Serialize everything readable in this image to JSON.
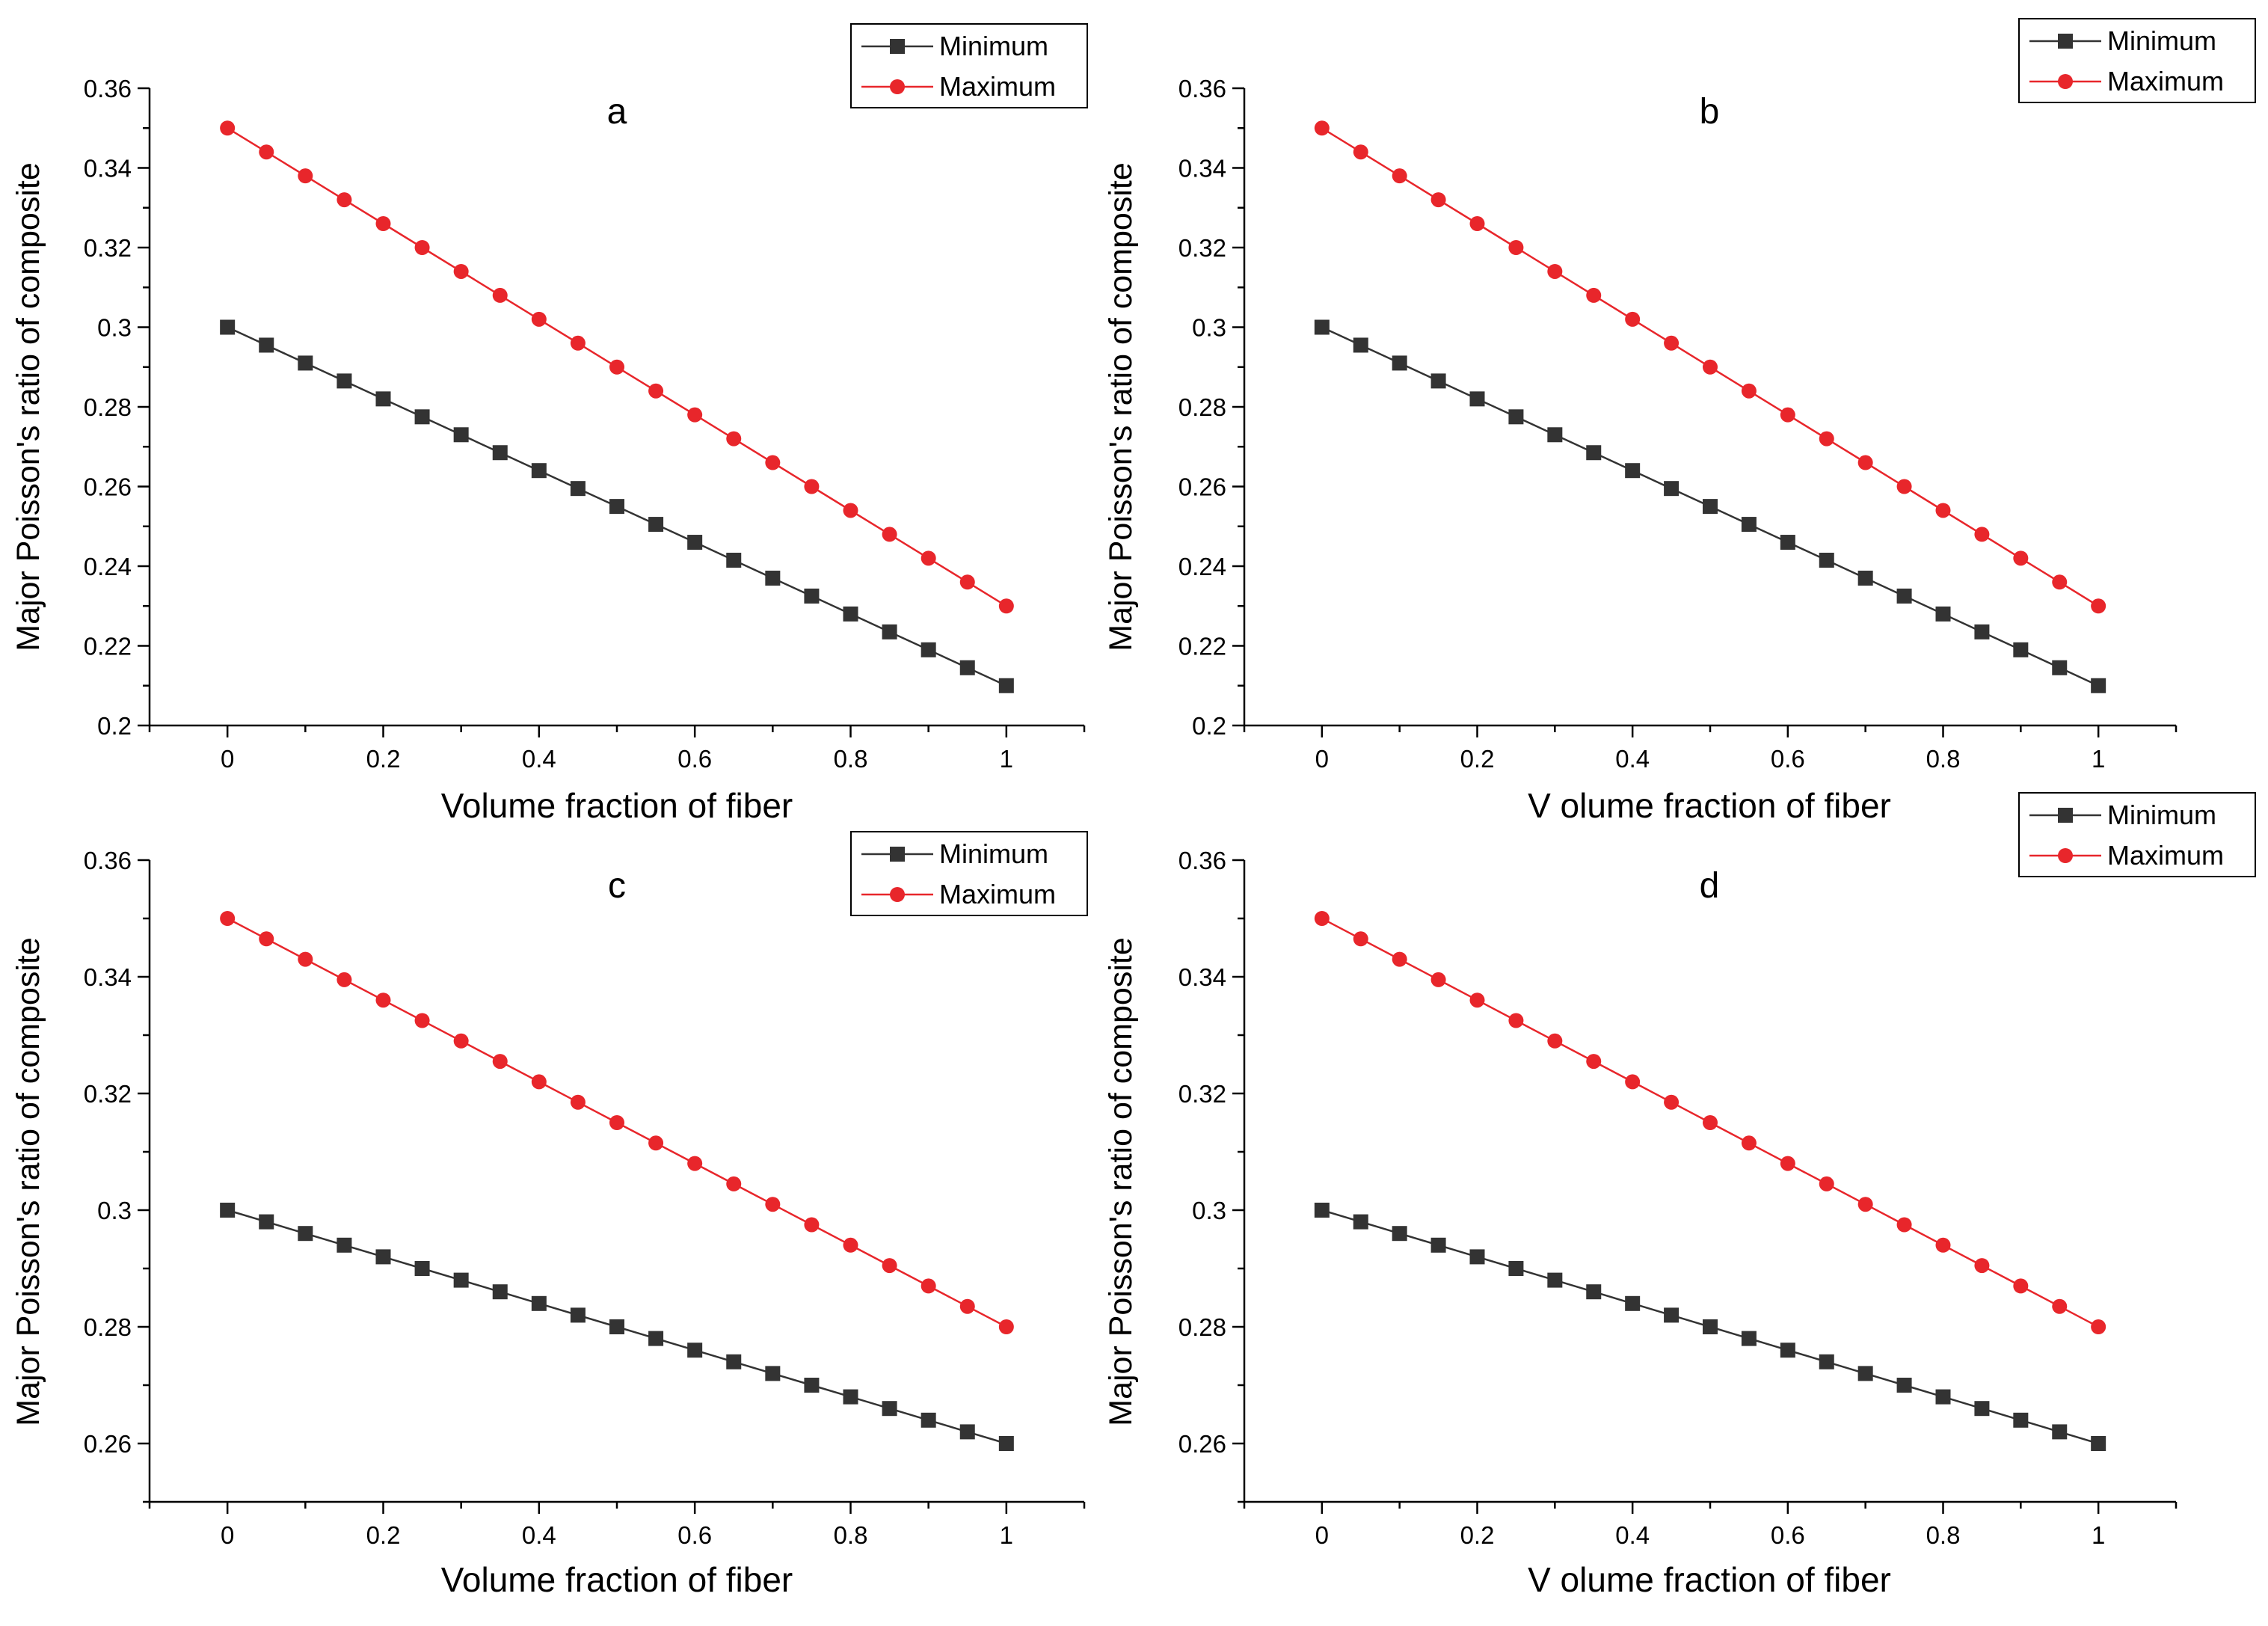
{
  "figure": {
    "colors": {
      "minimum": "#333333",
      "maximum": "#e8262b",
      "axis": "#000000"
    }
  },
  "chart_data": [
    {
      "type": "line",
      "title": "a",
      "xlabel": "Volume fraction of fiber",
      "ylabel": "Major Poisson's ratio of composite",
      "xlim": [
        -0.1,
        1.1
      ],
      "ylim": [
        0.2,
        0.36
      ],
      "xticks": [
        0,
        0.2,
        0.4,
        0.6,
        0.8,
        1
      ],
      "xtick_labels": [
        "0",
        "0.2",
        "0.4",
        "0.6",
        "0.8",
        "1"
      ],
      "yticks": [
        0.2,
        0.22,
        0.24,
        0.26,
        0.28,
        0.3,
        0.32,
        0.34,
        0.36
      ],
      "ytick_labels": [
        "0.2",
        "0.22",
        "0.24",
        "0.26",
        "0.28",
        "0.3",
        "0.32",
        "0.34",
        "0.36"
      ],
      "legend_position": "top-right",
      "x": [
        0,
        0.05,
        0.1,
        0.15,
        0.2,
        0.25,
        0.3,
        0.35,
        0.4,
        0.45,
        0.5,
        0.55,
        0.6,
        0.65,
        0.7,
        0.75,
        0.8,
        0.85,
        0.9,
        0.95,
        1
      ],
      "series": [
        {
          "name": "Minimum",
          "marker": "square",
          "color": "#333333",
          "values": [
            0.3,
            0.2955,
            0.291,
            0.2865,
            0.282,
            0.2775,
            0.273,
            0.2685,
            0.264,
            0.2595,
            0.255,
            0.2505,
            0.246,
            0.2415,
            0.237,
            0.2325,
            0.228,
            0.2235,
            0.219,
            0.2145,
            0.21
          ]
        },
        {
          "name": "Maximum",
          "marker": "circle",
          "color": "#e8262b",
          "values": [
            0.35,
            0.344,
            0.338,
            0.332,
            0.326,
            0.32,
            0.314,
            0.308,
            0.302,
            0.296,
            0.29,
            0.284,
            0.278,
            0.272,
            0.266,
            0.26,
            0.254,
            0.248,
            0.242,
            0.236,
            0.23
          ]
        }
      ]
    },
    {
      "type": "line",
      "title": "b",
      "xlabel": "V olume fraction of fiber",
      "ylabel": "Major Poisson's ratio of composite",
      "xlim": [
        -0.1,
        1.1
      ],
      "ylim": [
        0.2,
        0.36
      ],
      "xticks": [
        0,
        0.2,
        0.4,
        0.6,
        0.8,
        1
      ],
      "xtick_labels": [
        "0",
        "0.2",
        "0.4",
        "0.6",
        "0.8",
        "1"
      ],
      "yticks": [
        0.2,
        0.22,
        0.24,
        0.26,
        0.28,
        0.3,
        0.32,
        0.34,
        0.36
      ],
      "ytick_labels": [
        "0.2",
        "0.22",
        "0.24",
        "0.26",
        "0.28",
        "0.3",
        "0.32",
        "0.34",
        "0.36"
      ],
      "legend_position": "top-right",
      "x": [
        0,
        0.05,
        0.1,
        0.15,
        0.2,
        0.25,
        0.3,
        0.35,
        0.4,
        0.45,
        0.5,
        0.55,
        0.6,
        0.65,
        0.7,
        0.75,
        0.8,
        0.85,
        0.9,
        0.95,
        1
      ],
      "series": [
        {
          "name": "Minimum",
          "marker": "square",
          "color": "#333333",
          "values": [
            0.3,
            0.2955,
            0.291,
            0.2865,
            0.282,
            0.2775,
            0.273,
            0.2685,
            0.264,
            0.2595,
            0.255,
            0.2505,
            0.246,
            0.2415,
            0.237,
            0.2325,
            0.228,
            0.2235,
            0.219,
            0.2145,
            0.21
          ]
        },
        {
          "name": "Maximum",
          "marker": "circle",
          "color": "#e8262b",
          "values": [
            0.35,
            0.344,
            0.338,
            0.332,
            0.326,
            0.32,
            0.314,
            0.308,
            0.302,
            0.296,
            0.29,
            0.284,
            0.278,
            0.272,
            0.266,
            0.26,
            0.254,
            0.248,
            0.242,
            0.236,
            0.23
          ]
        }
      ]
    },
    {
      "type": "line",
      "title": "c",
      "xlabel": "Volume fraction of fiber",
      "ylabel": "Major Poisson's ratio of composite",
      "xlim": [
        -0.1,
        1.1
      ],
      "ylim": [
        0.25,
        0.36
      ],
      "xticks": [
        0,
        0.2,
        0.4,
        0.6,
        0.8,
        1
      ],
      "xtick_labels": [
        "0",
        "0.2",
        "0.4",
        "0.6",
        "0.8",
        "1"
      ],
      "yticks": [
        0.26,
        0.28,
        0.3,
        0.32,
        0.34,
        0.36
      ],
      "ytick_labels": [
        "0.26",
        "0.28",
        "0.3",
        "0.32",
        "0.34",
        "0.36"
      ],
      "legend_position": "top-right",
      "x": [
        0,
        0.05,
        0.1,
        0.15,
        0.2,
        0.25,
        0.3,
        0.35,
        0.4,
        0.45,
        0.5,
        0.55,
        0.6,
        0.65,
        0.7,
        0.75,
        0.8,
        0.85,
        0.9,
        0.95,
        1
      ],
      "series": [
        {
          "name": "Minimum",
          "marker": "square",
          "color": "#333333",
          "values": [
            0.3,
            0.298,
            0.296,
            0.294,
            0.292,
            0.29,
            0.288,
            0.286,
            0.284,
            0.282,
            0.28,
            0.278,
            0.276,
            0.274,
            0.272,
            0.27,
            0.268,
            0.266,
            0.264,
            0.262,
            0.26
          ]
        },
        {
          "name": "Maximum",
          "marker": "circle",
          "color": "#e8262b",
          "values": [
            0.35,
            0.3465,
            0.343,
            0.3395,
            0.336,
            0.3325,
            0.329,
            0.3255,
            0.322,
            0.3185,
            0.315,
            0.3115,
            0.308,
            0.3045,
            0.301,
            0.2975,
            0.294,
            0.2905,
            0.287,
            0.2835,
            0.28
          ]
        }
      ]
    },
    {
      "type": "line",
      "title": "d",
      "xlabel": "V olume fraction of fiber",
      "ylabel": "Major Poisson's ratio of composite",
      "xlim": [
        -0.1,
        1.1
      ],
      "ylim": [
        0.25,
        0.36
      ],
      "xticks": [
        0,
        0.2,
        0.4,
        0.6,
        0.8,
        1
      ],
      "xtick_labels": [
        "0",
        "0.2",
        "0.4",
        "0.6",
        "0.8",
        "1"
      ],
      "yticks": [
        0.26,
        0.28,
        0.3,
        0.32,
        0.34,
        0.36
      ],
      "ytick_labels": [
        "0.26",
        "0.28",
        "0.3",
        "0.32",
        "0.34",
        "0.36"
      ],
      "legend_position": "top-right",
      "x": [
        0,
        0.05,
        0.1,
        0.15,
        0.2,
        0.25,
        0.3,
        0.35,
        0.4,
        0.45,
        0.5,
        0.55,
        0.6,
        0.65,
        0.7,
        0.75,
        0.8,
        0.85,
        0.9,
        0.95,
        1
      ],
      "series": [
        {
          "name": "Minimum",
          "marker": "square",
          "color": "#333333",
          "values": [
            0.3,
            0.298,
            0.296,
            0.294,
            0.292,
            0.29,
            0.288,
            0.286,
            0.284,
            0.282,
            0.28,
            0.278,
            0.276,
            0.274,
            0.272,
            0.27,
            0.268,
            0.266,
            0.264,
            0.262,
            0.26
          ]
        },
        {
          "name": "Maximum",
          "marker": "circle",
          "color": "#e8262b",
          "values": [
            0.35,
            0.3465,
            0.343,
            0.3395,
            0.336,
            0.3325,
            0.329,
            0.3255,
            0.322,
            0.3185,
            0.315,
            0.3115,
            0.308,
            0.3045,
            0.301,
            0.2975,
            0.294,
            0.2905,
            0.287,
            0.2835,
            0.28
          ]
        }
      ]
    }
  ]
}
